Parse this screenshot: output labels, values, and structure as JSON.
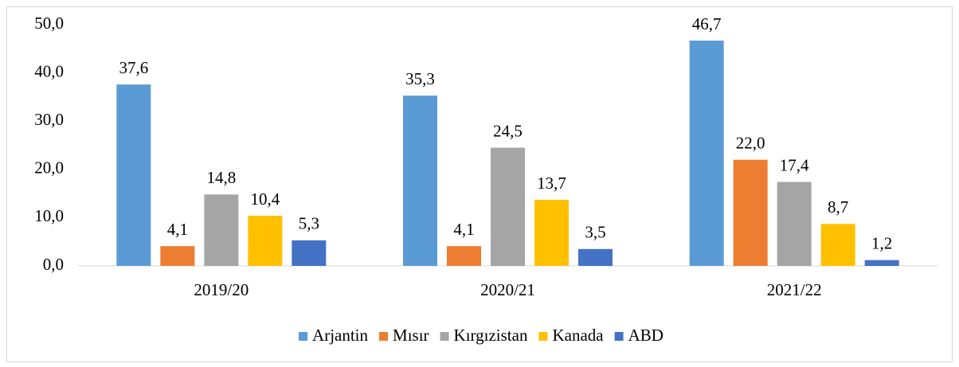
{
  "chart_data": {
    "type": "bar",
    "categories": [
      "2019/20",
      "2020/21",
      "2021/22"
    ],
    "series": [
      {
        "name": "Arjantin",
        "color": "#5b9bd5",
        "values": [
          37.6,
          35.3,
          46.7
        ],
        "value_labels": [
          "37,6",
          "35,3",
          "46,7"
        ]
      },
      {
        "name": "Mısır",
        "color": "#ed7d31",
        "values": [
          4.1,
          4.1,
          22.0
        ],
        "value_labels": [
          "4,1",
          "4,1",
          "22,0"
        ]
      },
      {
        "name": "Kırgızistan",
        "color": "#a5a5a5",
        "values": [
          14.8,
          24.5,
          17.4
        ],
        "value_labels": [
          "14,8",
          "24,5",
          "17,4"
        ]
      },
      {
        "name": "Kanada",
        "color": "#ffc000",
        "values": [
          10.4,
          13.7,
          8.7
        ],
        "value_labels": [
          "10,4",
          "13,7",
          "8,7"
        ]
      },
      {
        "name": "ABD",
        "color": "#4472c4",
        "values": [
          5.3,
          3.5,
          1.2
        ],
        "value_labels": [
          "5,3",
          "3,5",
          "1,2"
        ]
      }
    ],
    "ylim": [
      0,
      50
    ],
    "yticks": [
      {
        "value": 0,
        "label": "0,0"
      },
      {
        "value": 10,
        "label": "10,0"
      },
      {
        "value": 20,
        "label": "20,0"
      },
      {
        "value": 30,
        "label": "30,0"
      },
      {
        "value": 40,
        "label": "40,0"
      },
      {
        "value": 50,
        "label": "50,0"
      }
    ],
    "grid": false,
    "legend": "bottom"
  }
}
